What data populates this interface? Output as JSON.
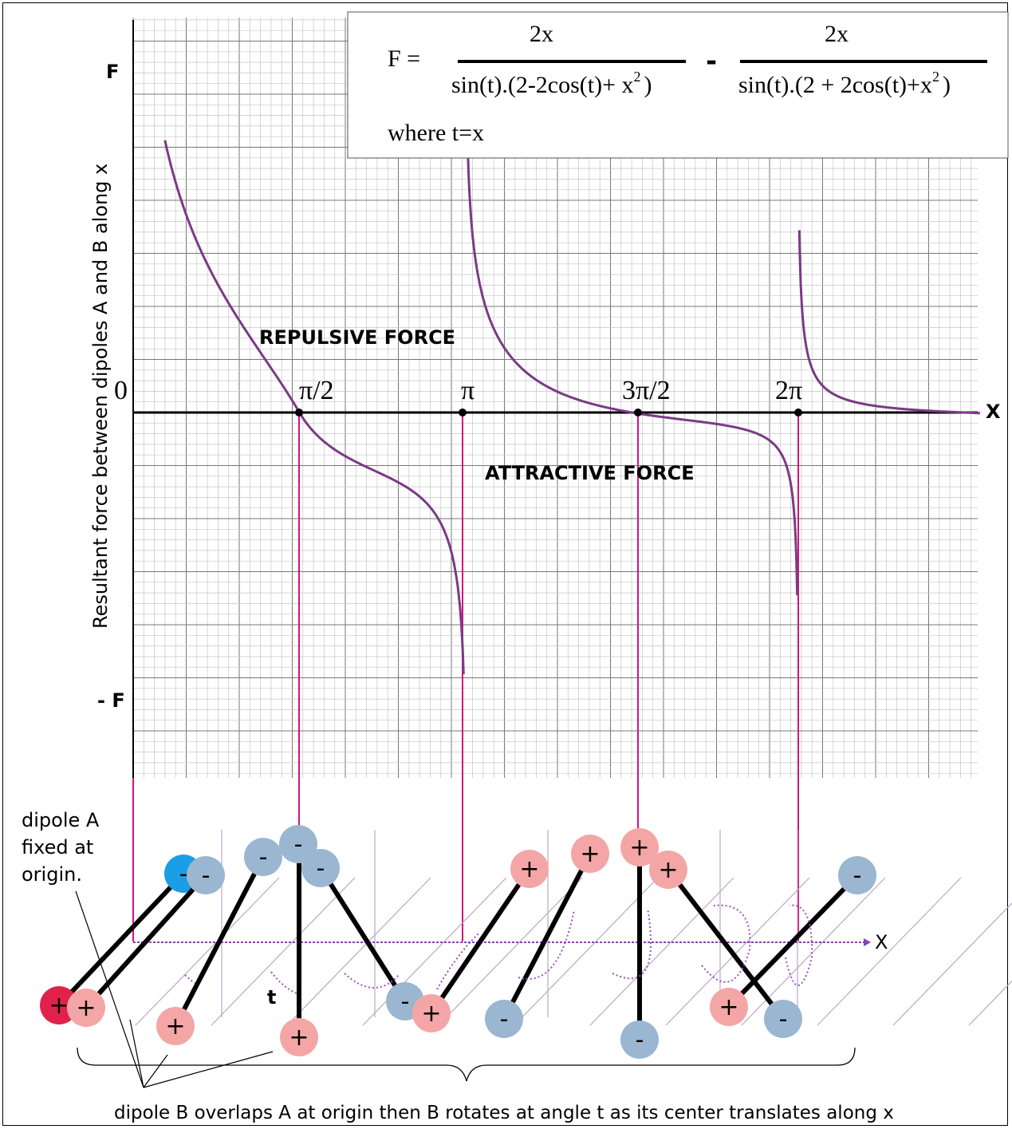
{
  "graph": {
    "y_axis_label": "Resultant force between dipoles A and B along  x",
    "y_top_label": "F",
    "y_bottom_label": "- F",
    "origin_label": "0",
    "x_axis_label": "X",
    "x_ticks": [
      "π/2",
      "π",
      "3π/2",
      "2π"
    ],
    "repulsive_label": "REPULSIVE  FORCE",
    "attractive_label": "ATTRACTIVE  FORCE",
    "curve_color": "#7b3a86",
    "guide_color": "#d4147f"
  },
  "formula": {
    "lhs": "F =",
    "num1": "2x",
    "den1": "sin(t).(2-2cos(t)+ x",
    "den1_exp": "2",
    "den1_close": ")",
    "minus": "-",
    "num2": "2x",
    "den2": "sin(t).(2 + 2cos(t)+x",
    "den2_exp": "2",
    "den2_close": ")",
    "where": "where t=x"
  },
  "chart_data": {
    "type": "line",
    "series": [
      {
        "values": [
          {
            "x": "π/2",
            "y": 0
          },
          {
            "x": "π",
            "y": "-∞"
          },
          {
            "x": "3π/2",
            "y": 0
          },
          {
            "x": "2π",
            "y": "±∞"
          }
        ]
      }
    ]
  },
  "dipoles": {
    "a_label": "dipole A\nfixed at\norigin.",
    "b_label": "dipole B overlaps A at origin then B rotates at angle t as its center translates along x",
    "angle_label": "t",
    "axis_label": "X",
    "plus": "+",
    "minus": "-",
    "colors": {
      "positive": "#f4a6a6",
      "negative": "#9bb6d0",
      "a_positive": "#e0224a",
      "a_negative": "#1a9ee6"
    }
  }
}
